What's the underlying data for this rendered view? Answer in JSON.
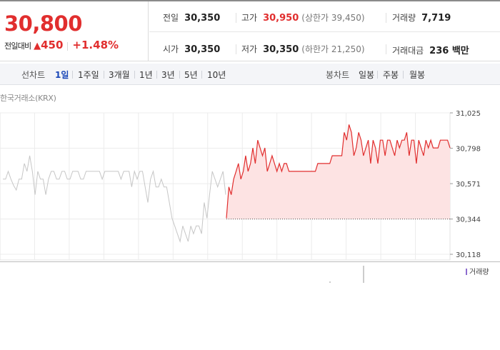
{
  "quote": {
    "price": "30,800",
    "change_label": "전일대비",
    "change_arrow": "▲",
    "change_value": "450",
    "change_pct": "+1.48%",
    "stats": {
      "prev_close": {
        "label": "전일",
        "value": "30,350"
      },
      "open": {
        "label": "시가",
        "value": "30,350"
      },
      "high": {
        "label": "고가",
        "value": "30,950",
        "limit": "(상한가 39,450)"
      },
      "low": {
        "label": "저가",
        "value": "30,350",
        "limit": "(하한가 21,250)"
      },
      "volume": {
        "label": "거래량",
        "value": "7,719"
      },
      "amount": {
        "label": "거래대금",
        "value": "236 백만"
      }
    }
  },
  "tabs": {
    "line_label": "선차트",
    "line_periods": [
      "1일",
      "1주일",
      "3개월",
      "1년",
      "3년",
      "5년",
      "10년"
    ],
    "active_period": "1일",
    "candle_label": "봉차트",
    "candle_periods": [
      "일봉",
      "주봉",
      "월봉"
    ]
  },
  "chart": {
    "exchange": "한국거래소(KRX)",
    "volume_legend": "거래량"
  },
  "colors": {
    "up": "#e12e2e",
    "up_fill": "#fde3e3",
    "prior_line": "#c6c6c6",
    "active_tab": "#1a47b8"
  },
  "chart_data": {
    "type": "line",
    "yticks": [
      "31,025",
      "30,798",
      "30,571",
      "30,344",
      "30,118"
    ],
    "ylim": [
      30118,
      31025
    ],
    "prev_close": 30344,
    "prior_series": [
      30600,
      30600,
      30650,
      30600,
      30560,
      30530,
      30600,
      30600,
      30700,
      30650,
      30750,
      30650,
      30500,
      30650,
      30600,
      30600,
      30500,
      30600,
      30650,
      30650,
      30600,
      30600,
      30650,
      30650,
      30600,
      30600,
      30650,
      30650,
      30650,
      30600,
      30600,
      30650,
      30650,
      30650,
      30650,
      30650,
      30650,
      30600,
      30650,
      30650,
      30650,
      30650,
      30650,
      30650,
      30600,
      30650,
      30650,
      30650,
      30550,
      30650,
      30600,
      30650,
      30650,
      30550,
      30450,
      30600,
      30650,
      30550,
      30550,
      30600,
      30550,
      30550,
      30450,
      30350,
      30300,
      30250,
      30200,
      30300,
      30250,
      30200,
      30300,
      30250,
      30300,
      30300,
      30250,
      30450,
      30350,
      30500,
      30650,
      30600,
      30550,
      30600,
      30650,
      30500
    ],
    "day_series": [
      30350,
      30550,
      30500,
      30600,
      30650,
      30700,
      30600,
      30650,
      30750,
      30650,
      30700,
      30800,
      30700,
      30850,
      30800,
      30750,
      30800,
      30650,
      30700,
      30750,
      30700,
      30650,
      30700,
      30650,
      30700,
      30700,
      30650,
      30650,
      30650,
      30650,
      30650,
      30650,
      30650,
      30650,
      30650,
      30650,
      30650,
      30650,
      30700,
      30700,
      30700,
      30700,
      30700,
      30700,
      30750,
      30750,
      30750,
      30750,
      30750,
      30900,
      30850,
      30950,
      30900,
      30750,
      30800,
      30900,
      30850,
      30750,
      30800,
      30850,
      30700,
      30850,
      30800,
      30700,
      30850,
      30850,
      30750,
      30850,
      30850,
      30800,
      30750,
      30850,
      30800,
      30850,
      30850,
      30900,
      30750,
      30850,
      30850,
      30700,
      30850,
      30800,
      30750,
      30850,
      30800,
      30850,
      30800,
      30800,
      30800,
      30850,
      30850,
      30850,
      30850,
      30800
    ]
  }
}
